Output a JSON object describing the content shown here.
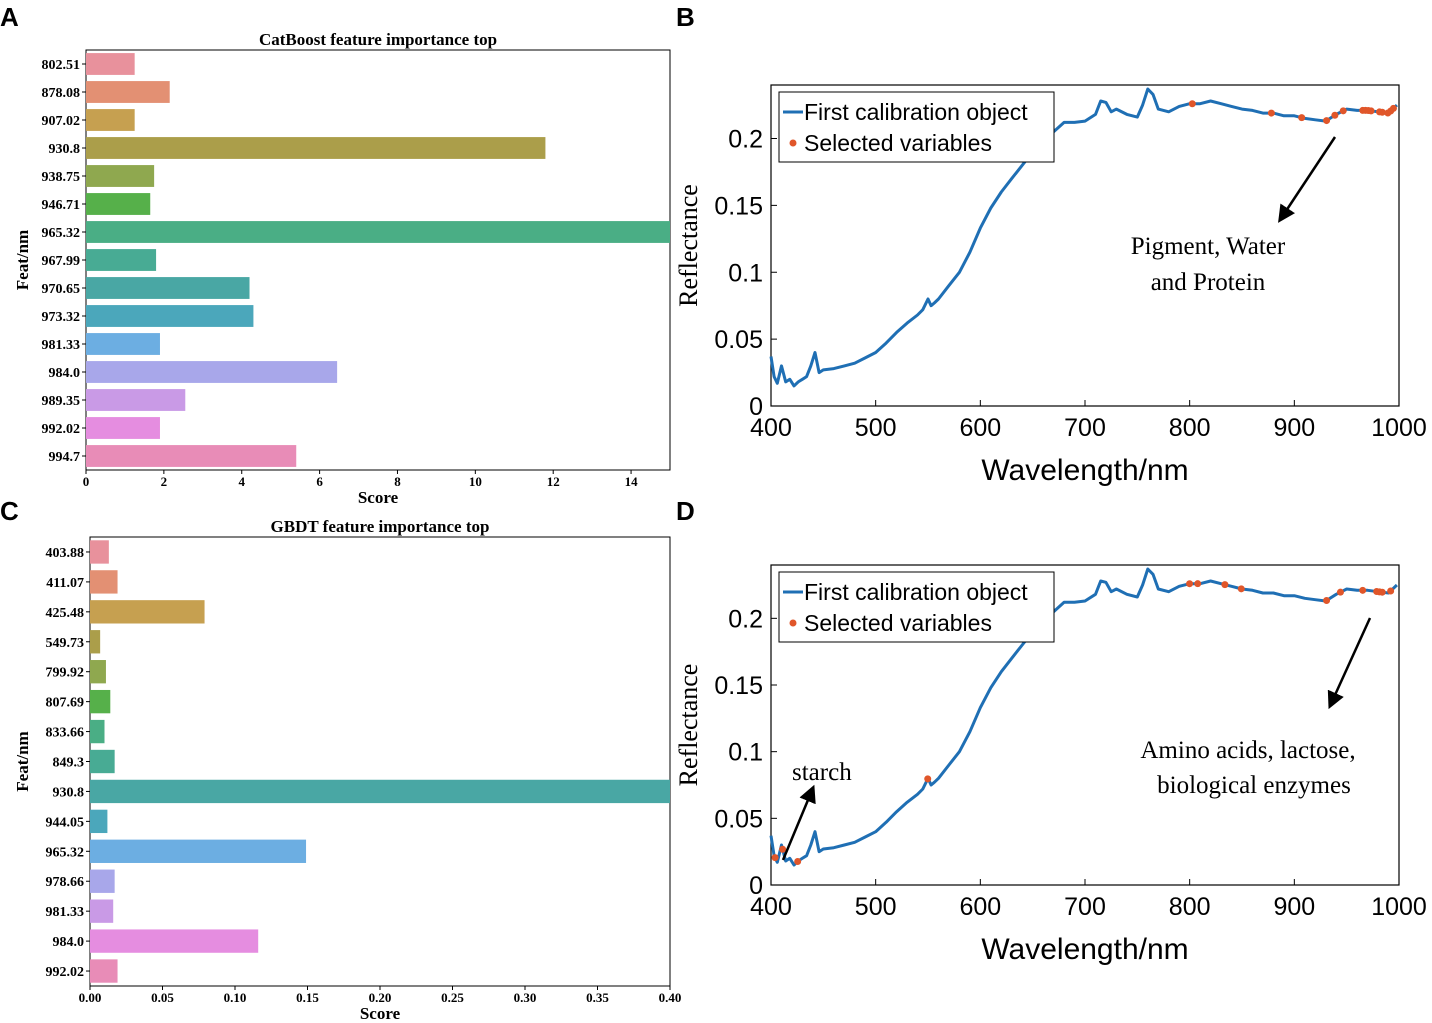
{
  "chart_data": [
    {
      "panel": "A",
      "type": "bar",
      "orientation": "horizontal",
      "title": "CatBoost feature importance top",
      "xlabel": "Score",
      "ylabel": "Feat/nm",
      "categories": [
        "802.51",
        "878.08",
        "907.02",
        "930.8",
        "938.75",
        "946.71",
        "965.32",
        "967.99",
        "970.65",
        "973.32",
        "981.33",
        "984.0",
        "989.35",
        "992.02",
        "994.7"
      ],
      "values": [
        1.25,
        2.15,
        1.25,
        11.8,
        1.75,
        1.65,
        15.0,
        1.8,
        4.2,
        4.3,
        1.9,
        6.45,
        2.55,
        1.9,
        5.4
      ],
      "colors": [
        "#e8919c",
        "#e39073",
        "#c6a050",
        "#ab9e4a",
        "#8fa84f",
        "#56b04a",
        "#4aae85",
        "#48ab94",
        "#49a7a4",
        "#4ba7bb",
        "#6caee2",
        "#a8a7ea",
        "#c99ae6",
        "#e58de0",
        "#e88cb7"
      ],
      "xticks": [
        "0",
        "2",
        "4",
        "6",
        "8",
        "10",
        "12",
        "14"
      ],
      "xtick_values": [
        0,
        2,
        4,
        6,
        8,
        10,
        12,
        14
      ],
      "xlim": [
        0,
        15.0
      ]
    },
    {
      "panel": "B",
      "type": "line",
      "xlabel": "Wavelength/nm",
      "ylabel": "Reflectance",
      "xlim": [
        400,
        1000
      ],
      "ylim": [
        0,
        0.24
      ],
      "xticks": [
        "400",
        "500",
        "600",
        "700",
        "800",
        "900",
        "1000"
      ],
      "xtick_values": [
        400,
        500,
        600,
        700,
        800,
        900,
        1000
      ],
      "yticks": [
        "0",
        "0.05",
        "0.1",
        "0.15",
        "0.2"
      ],
      "ytick_values": [
        0,
        0.05,
        0.1,
        0.15,
        0.2
      ],
      "legend": [
        "First calibration object",
        "Selected variables"
      ],
      "annotation_lines": [
        "Pigment, Water",
        "and Protein"
      ],
      "selected_wavelengths": [
        802.51,
        878.08,
        907.02,
        930.8,
        938.75,
        946.71,
        965.32,
        967.99,
        970.65,
        973.32,
        981.33,
        984.0,
        989.35,
        992.02,
        994.7
      ]
    },
    {
      "panel": "C",
      "type": "bar",
      "orientation": "horizontal",
      "title": "GBDT feature importance top",
      "xlabel": "Score",
      "ylabel": "Feat/nm",
      "categories": [
        "403.88",
        "411.07",
        "425.48",
        "549.73",
        "799.92",
        "807.69",
        "833.66",
        "849.3",
        "930.8",
        "944.05",
        "965.32",
        "978.66",
        "981.33",
        "984.0",
        "992.02"
      ],
      "values": [
        0.013,
        0.019,
        0.079,
        0.007,
        0.011,
        0.014,
        0.01,
        0.017,
        0.4,
        0.012,
        0.149,
        0.017,
        0.016,
        0.116,
        0.019
      ],
      "colors": [
        "#e8919c",
        "#e39073",
        "#c6a050",
        "#ab9e4a",
        "#8fa84f",
        "#56b04a",
        "#4aae85",
        "#48ab94",
        "#49a7a4",
        "#4ba7bb",
        "#6caee2",
        "#a8a7ea",
        "#c99ae6",
        "#e58de0",
        "#e88cb7"
      ],
      "xticks": [
        "0.00",
        "0.05",
        "0.10",
        "0.15",
        "0.20",
        "0.25",
        "0.30",
        "0.35",
        "0.40"
      ],
      "xtick_values": [
        0,
        0.05,
        0.1,
        0.15,
        0.2,
        0.25,
        0.3,
        0.35,
        0.4
      ],
      "xlim": [
        0,
        0.4
      ]
    },
    {
      "panel": "D",
      "type": "line",
      "xlabel": "Wavelength/nm",
      "ylabel": "Reflectance",
      "xlim": [
        400,
        1000
      ],
      "ylim": [
        0,
        0.24
      ],
      "xticks": [
        "400",
        "500",
        "600",
        "700",
        "800",
        "900",
        "1000"
      ],
      "xtick_values": [
        400,
        500,
        600,
        700,
        800,
        900,
        1000
      ],
      "yticks": [
        "0",
        "0.05",
        "0.1",
        "0.15",
        "0.2"
      ],
      "ytick_values": [
        0,
        0.05,
        0.1,
        0.15,
        0.2
      ],
      "legend": [
        "First calibration object",
        "Selected variables"
      ],
      "annotation_lines": [
        "Amino acids, lactose,",
        "biological enzymes"
      ],
      "annotation2": "starch",
      "selected_wavelengths": [
        403.88,
        411.07,
        425.48,
        549.73,
        799.92,
        807.69,
        833.66,
        849.3,
        930.8,
        944.05,
        965.32,
        978.66,
        981.33,
        984.0,
        992.02
      ]
    }
  ],
  "spectrum": {
    "wavelengths": [
      400,
      403,
      406,
      410,
      414,
      418,
      422,
      426,
      430,
      434,
      438,
      442,
      446,
      450,
      460,
      470,
      480,
      490,
      500,
      510,
      520,
      530,
      540,
      545,
      550,
      553,
      556,
      560,
      570,
      580,
      590,
      600,
      610,
      620,
      630,
      640,
      650,
      660,
      670,
      680,
      690,
      700,
      710,
      715,
      720,
      725,
      730,
      740,
      750,
      755,
      760,
      765,
      770,
      780,
      790,
      800,
      810,
      820,
      830,
      840,
      850,
      860,
      870,
      880,
      890,
      900,
      910,
      920,
      930,
      940,
      950,
      960,
      970,
      980,
      990,
      998
    ],
    "reflectance": [
      0.037,
      0.022,
      0.017,
      0.03,
      0.018,
      0.02,
      0.015,
      0.018,
      0.02,
      0.022,
      0.03,
      0.04,
      0.025,
      0.027,
      0.028,
      0.03,
      0.032,
      0.036,
      0.04,
      0.047,
      0.055,
      0.062,
      0.068,
      0.072,
      0.08,
      0.075,
      0.077,
      0.08,
      0.09,
      0.1,
      0.115,
      0.133,
      0.148,
      0.16,
      0.17,
      0.18,
      0.19,
      0.198,
      0.205,
      0.212,
      0.212,
      0.213,
      0.218,
      0.228,
      0.227,
      0.22,
      0.222,
      0.218,
      0.216,
      0.225,
      0.237,
      0.233,
      0.222,
      0.22,
      0.224,
      0.226,
      0.226,
      0.228,
      0.226,
      0.224,
      0.222,
      0.221,
      0.219,
      0.219,
      0.217,
      0.217,
      0.215,
      0.214,
      0.213,
      0.218,
      0.222,
      0.221,
      0.221,
      0.22,
      0.219,
      0.225
    ]
  },
  "colors": {
    "line": "#1f6fb4",
    "marker": "#e0562a",
    "axis": "#000000"
  },
  "panel_labels": [
    "A",
    "B",
    "C",
    "D"
  ]
}
